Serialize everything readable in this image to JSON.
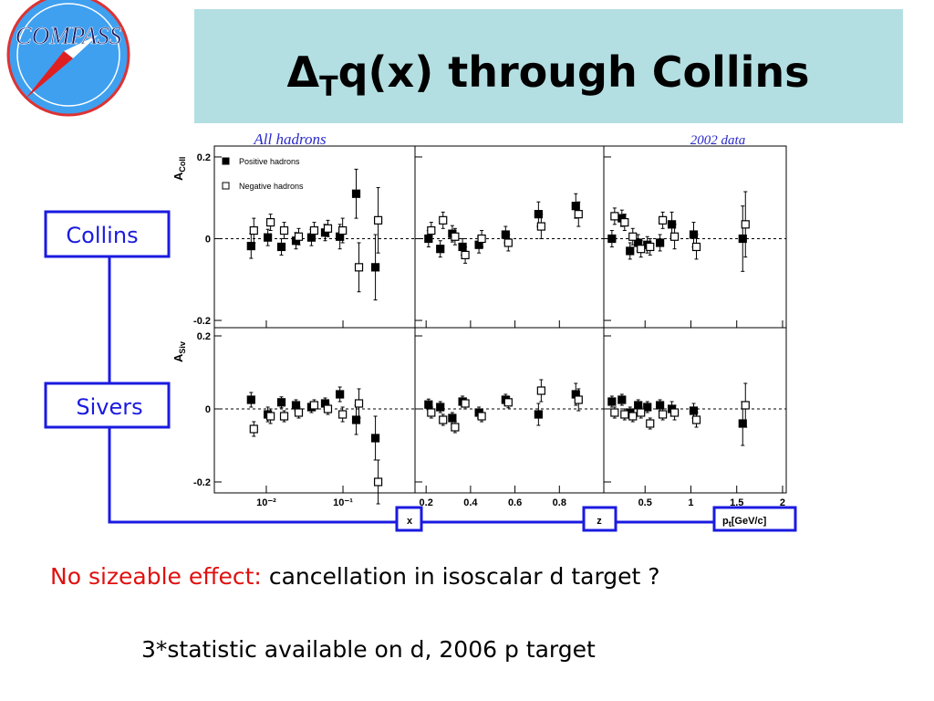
{
  "header": {
    "logo": "COMPASS",
    "title": {
      "delta": "Δ",
      "sub": "T",
      "rest": "q(x) through Collins"
    }
  },
  "figure": {
    "left_caption": "All hadrons",
    "right_caption": "2002 data"
  },
  "labels": {
    "collins": "Collins",
    "sivers": "Sivers",
    "x": "x",
    "z": "z",
    "pt": "p",
    "pt_sub": "t",
    "pt_unit": "[GeV/c]"
  },
  "rows": [
    {
      "ylabel": "A",
      "ylabel_sub": "Coll"
    },
    {
      "ylabel": "A",
      "ylabel_sub": "Siv"
    }
  ],
  "chart_data": [
    {
      "type": "scatter",
      "log_x": true,
      "zero_line": true,
      "xlim": [
        0.0021,
        0.87
      ],
      "xticks": [
        {
          "value": 0.01,
          "label": "10⁻²"
        },
        {
          "value": 0.1,
          "label": "10⁻¹"
        }
      ],
      "ylim": [
        -0.22,
        0.22
      ],
      "yticks": [
        0.2,
        0,
        -0.2
      ],
      "x": [
        0.0066,
        0.0109,
        0.0164,
        0.0254,
        0.0404,
        0.061,
        0.095,
        0.155,
        0.276
      ],
      "series": [
        {
          "name": "Positive hadrons",
          "color": "#000000",
          "filled": true,
          "values": [
            -0.018,
            0.003,
            -0.02,
            -0.005,
            0.003,
            0.015,
            0.005,
            0.11,
            -0.07
          ],
          "errors": [
            0.03,
            0.02,
            0.02,
            0.02,
            0.02,
            0.02,
            0.03,
            0.06,
            0.08
          ]
        },
        {
          "name": "Negative hadrons",
          "color": "#000000",
          "filled": false,
          "values": [
            0.02,
            0.04,
            0.02,
            0.005,
            0.02,
            0.025,
            0.02,
            -0.07,
            0.045
          ],
          "errors": [
            0.03,
            0.02,
            0.02,
            0.02,
            0.02,
            0.02,
            0.03,
            0.06,
            0.08
          ]
        }
      ]
    },
    {
      "type": "scatter",
      "log_x": false,
      "zero_line": true,
      "xlim": [
        0.15,
        1.0
      ],
      "xticks": [
        0.2,
        0.4,
        0.6,
        0.8
      ],
      "ylim": [
        -0.22,
        0.22
      ],
      "yticks": [
        0.2,
        0,
        -0.2
      ],
      "x": [
        0.217,
        0.27,
        0.324,
        0.37,
        0.444,
        0.564,
        0.712,
        0.88
      ],
      "series": [
        {
          "color": "#000000",
          "filled": true,
          "values": [
            0,
            -0.025,
            0.012,
            -0.02,
            -0.015,
            0.01,
            0.06,
            0.08
          ],
          "errors": [
            0.02,
            0.02,
            0.02,
            0.02,
            0.02,
            0.02,
            0.03,
            0.03
          ]
        },
        {
          "color": "#000000",
          "filled": false,
          "values": [
            0.02,
            0.045,
            0.005,
            -0.04,
            0.0,
            -0.01,
            0.03,
            0.06
          ],
          "errors": [
            0.02,
            0.02,
            0.02,
            0.02,
            0.02,
            0.02,
            0.03,
            0.03
          ]
        }
      ]
    },
    {
      "type": "scatter",
      "log_x": false,
      "zero_line": true,
      "xlim": [
        0.05,
        2.04
      ],
      "xticks": [
        0.5,
        1,
        1.5,
        2
      ],
      "ylim": [
        -0.22,
        0.22
      ],
      "yticks": [
        0.2,
        0,
        -0.2
      ],
      "x": [
        0.153,
        0.262,
        0.351,
        0.44,
        0.54,
        0.678,
        0.807,
        1.045,
        1.58
      ],
      "series": [
        {
          "color": "#000000",
          "filled": true,
          "values": [
            0,
            0.05,
            -0.03,
            -0.01,
            -0.015,
            -0.01,
            0.035,
            0.01,
            0
          ],
          "errors": [
            0.02,
            0.02,
            0.02,
            0.02,
            0.02,
            0.02,
            0.03,
            0.03,
            0.08
          ]
        },
        {
          "color": "#000000",
          "filled": false,
          "values": [
            0.055,
            0.04,
            0.005,
            -0.025,
            -0.02,
            0.045,
            0.005,
            -0.02,
            0.035
          ],
          "errors": [
            0.02,
            0.02,
            0.02,
            0.02,
            0.02,
            0.02,
            0.03,
            0.03,
            0.08
          ]
        }
      ]
    },
    {
      "type": "scatter",
      "log_x": true,
      "zero_line": true,
      "xlim": [
        0.0021,
        0.87
      ],
      "xticks": [
        {
          "value": 0.01,
          "label": "10⁻²"
        },
        {
          "value": 0.1,
          "label": "10⁻¹"
        }
      ],
      "ylim": [
        -0.22,
        0.22
      ],
      "yticks": [
        0.2,
        0,
        -0.2
      ],
      "x": [
        0.0066,
        0.0109,
        0.0164,
        0.0254,
        0.0404,
        0.061,
        0.095,
        0.155,
        0.276
      ],
      "series": [
        {
          "color": "#000000",
          "filled": true,
          "values": [
            0.025,
            -0.015,
            0.018,
            0.01,
            0.005,
            0.015,
            0.04,
            -0.03,
            -0.08
          ],
          "errors": [
            0.02,
            0.02,
            0.015,
            0.015,
            0.015,
            0.015,
            0.02,
            0.04,
            0.06
          ]
        },
        {
          "color": "#000000",
          "filled": false,
          "values": [
            -0.055,
            -0.02,
            -0.02,
            -0.01,
            0.01,
            0,
            -0.015,
            0.015,
            -0.2
          ],
          "errors": [
            0.02,
            0.02,
            0.015,
            0.015,
            0.015,
            0.015,
            0.02,
            0.04,
            0.06
          ]
        }
      ]
    },
    {
      "type": "scatter",
      "log_x": false,
      "zero_line": true,
      "xlim": [
        0.15,
        1.0
      ],
      "xticks": [
        0.2,
        0.4,
        0.6,
        0.8
      ],
      "ylim": [
        -0.22,
        0.22
      ],
      "yticks": [
        0.2,
        0,
        -0.2
      ],
      "x": [
        0.217,
        0.27,
        0.324,
        0.37,
        0.444,
        0.564,
        0.712,
        0.88
      ],
      "series": [
        {
          "color": "#000000",
          "filled": true,
          "values": [
            0.012,
            0.005,
            -0.025,
            0.02,
            -0.01,
            0.025,
            -0.015,
            0.04
          ],
          "errors": [
            0.015,
            0.015,
            0.015,
            0.015,
            0.015,
            0.015,
            0.03,
            0.03
          ]
        },
        {
          "color": "#000000",
          "filled": false,
          "values": [
            -0.01,
            -0.03,
            -0.05,
            0.015,
            -0.02,
            0.018,
            0.05,
            0.025
          ],
          "errors": [
            0.015,
            0.015,
            0.015,
            0.015,
            0.015,
            0.015,
            0.03,
            0.03
          ]
        }
      ]
    },
    {
      "type": "scatter",
      "log_x": false,
      "zero_line": true,
      "xlim": [
        0.05,
        2.04
      ],
      "xticks": [
        0.5,
        1,
        1.5,
        2
      ],
      "ylim": [
        -0.22,
        0.22
      ],
      "yticks": [
        0.2,
        0,
        -0.2
      ],
      "x": [
        0.153,
        0.262,
        0.351,
        0.44,
        0.54,
        0.678,
        0.807,
        1.045,
        1.58
      ],
      "series": [
        {
          "color": "#000000",
          "filled": true,
          "values": [
            0.02,
            0.025,
            -0.01,
            0.01,
            0.005,
            0.01,
            0,
            -0.005,
            -0.04
          ],
          "errors": [
            0.015,
            0.015,
            0.015,
            0.015,
            0.015,
            0.015,
            0.02,
            0.02,
            0.06
          ]
        },
        {
          "color": "#000000",
          "filled": false,
          "values": [
            -0.01,
            -0.015,
            -0.02,
            -0.01,
            -0.04,
            -0.015,
            -0.01,
            -0.03,
            0.01
          ],
          "errors": [
            0.015,
            0.015,
            0.015,
            0.015,
            0.015,
            0.015,
            0.02,
            0.02,
            0.06
          ]
        }
      ]
    }
  ],
  "notes": {
    "highlight": "No sizeable effect:",
    "text": "cancellation in isoscalar d target ?",
    "statistic": "3*statistic available on d, 2006 p target"
  }
}
